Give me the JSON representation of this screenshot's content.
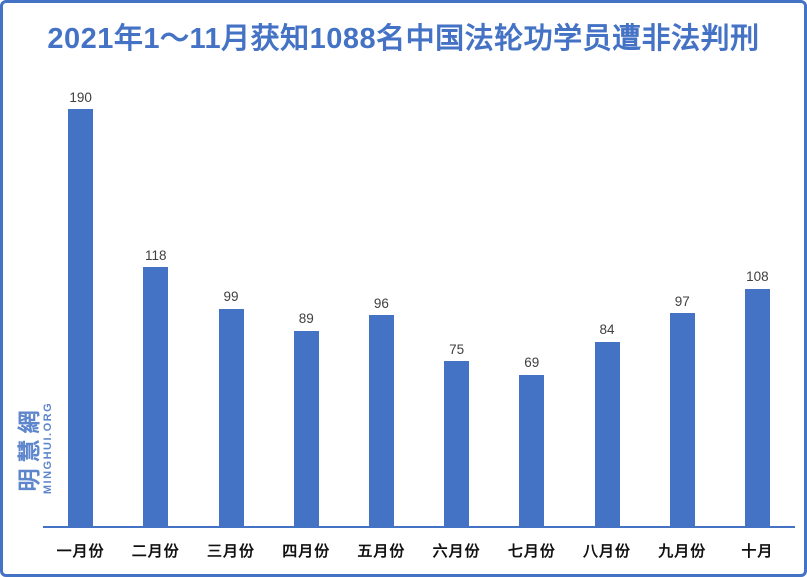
{
  "page": {
    "background": "#FFFFFF",
    "border_color": "#4472C4",
    "accent_color": "#4472C4"
  },
  "title": {
    "text": "2021年1～11月获知1088名中国法轮功学员遭非法判刑",
    "color": "#4472C4"
  },
  "watermark": {
    "site_name_cn": "明慧網",
    "site_name_en": "MINGHUI.ORG",
    "color": "#4D79C7"
  },
  "chart_data": {
    "type": "bar",
    "title": "2021年1～11月获知1088名中国法轮功学员遭非法判刑",
    "categories": [
      "一月份",
      "二月份",
      "三月份",
      "四月份",
      "五月份",
      "六月份",
      "七月份",
      "八月份",
      "九月份",
      "十月"
    ],
    "values": [
      190,
      118,
      99,
      89,
      96,
      75,
      69,
      84,
      97,
      108
    ],
    "xlabel": "",
    "ylabel": "",
    "ylim": [
      0,
      200
    ],
    "bar_color": "#4472C4",
    "value_label_color": "#404040",
    "axis_line_color": "#4472C4",
    "grid": false,
    "legend": false,
    "data_labels": true
  }
}
